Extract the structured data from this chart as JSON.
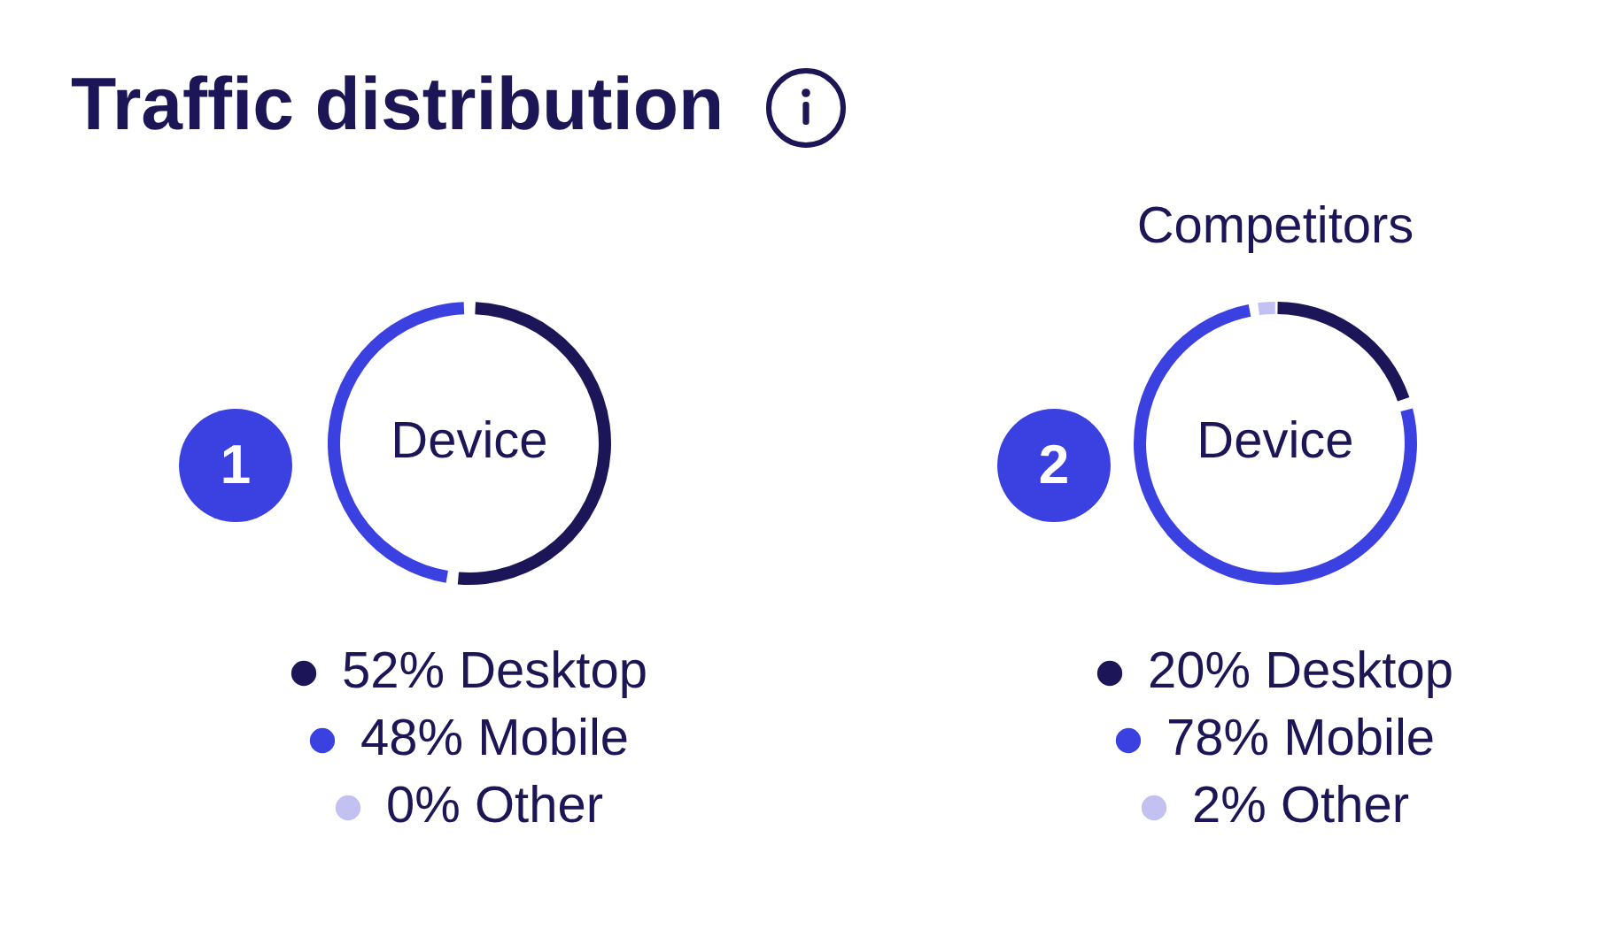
{
  "chart_data": [
    {
      "type": "donut",
      "title": "Traffic distribution",
      "categories": [
        "Desktop",
        "Mobile",
        "Other"
      ],
      "values": [
        52,
        48,
        0
      ],
      "colors": [
        "#1c1658",
        "#3b41e0",
        "#c2c1f2"
      ],
      "value_labels": [
        "52%",
        "48%",
        "0%"
      ],
      "annotations": [
        "Device",
        "1"
      ],
      "legend": "bottom"
    },
    {
      "type": "donut",
      "title": "Competitors",
      "categories": [
        "Desktop",
        "Mobile",
        "Other"
      ],
      "values": [
        20,
        78,
        2
      ],
      "colors": [
        "#1c1658",
        "#3b41e0",
        "#c2c1f2"
      ],
      "value_labels": [
        "20%",
        "78%",
        "2%"
      ],
      "annotations": [
        "Device",
        "2"
      ],
      "legend": "bottom"
    }
  ]
}
